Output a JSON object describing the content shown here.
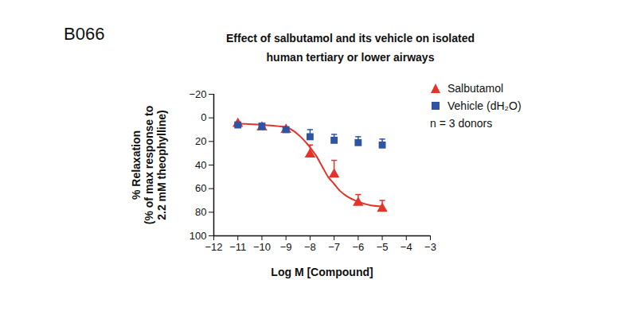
{
  "chart_data": {
    "type": "scatter",
    "panel_label": "B066",
    "title": "Effect of salbutamol and its vehicle on  isolated\nhuman tertiary or lower airways",
    "x_label": "Log M [Compound]",
    "y_label": "% Relaxation\n(% of max response to\n2.2 mM theophylline)",
    "annotation": "n = 3 donors",
    "x": [
      -11,
      -10,
      -9,
      -8,
      -7,
      -6,
      -5
    ],
    "series": [
      {
        "name": "Salbutamol",
        "color": "#e5332a",
        "marker": "triangle",
        "values": [
          5,
          8,
          10,
          31,
          48,
          72,
          77
        ],
        "errors": [
          1,
          1,
          2,
          8,
          12,
          7,
          7
        ],
        "fit": {
          "x": [
            -11,
            -10,
            -9,
            -8.5,
            -8,
            -7.75,
            -7.5,
            -7.25,
            -7,
            -6.75,
            -6.5,
            -6,
            -5.5,
            -5
          ],
          "values": [
            5,
            6,
            8,
            14,
            25,
            32,
            41,
            50,
            56,
            62,
            66,
            71,
            74,
            75
          ]
        }
      },
      {
        "name": "Vehicle (dH₂O)",
        "color": "#2e55a4",
        "marker": "square",
        "values": [
          6,
          7,
          10,
          16,
          19,
          21,
          23
        ],
        "errors": [
          1,
          1,
          2,
          6,
          5,
          5,
          5
        ]
      }
    ],
    "xlim": [
      -12,
      -3
    ],
    "xticks": [
      -12,
      -11,
      -10,
      -9,
      -8,
      -7,
      -6,
      -5,
      -4,
      -3
    ],
    "ylim": [
      100,
      -20
    ],
    "yticks": [
      -20,
      0,
      20,
      40,
      60,
      80,
      100
    ],
    "grid": false,
    "legend": "right"
  }
}
